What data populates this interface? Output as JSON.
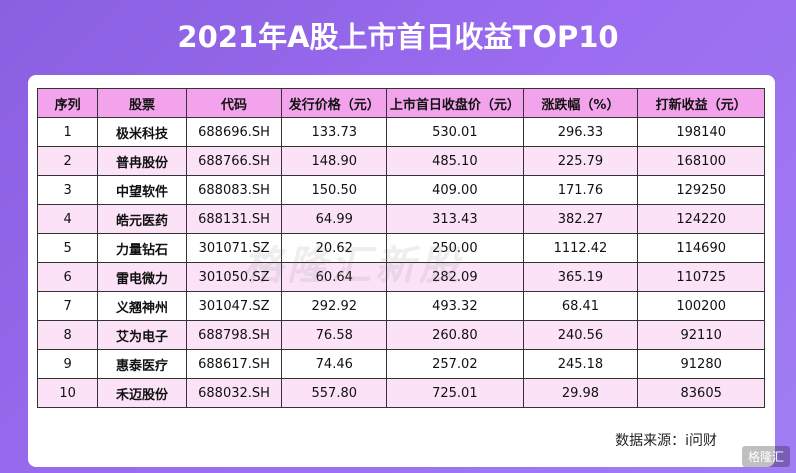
{
  "header": {
    "title": "2021年A股上市首日收益TOP10"
  },
  "table": {
    "columns": [
      "序列",
      "股票",
      "代码",
      "发行价格（元）",
      "上市首日收盘价（元）",
      "涨跌幅（%）",
      "打新收益（元）"
    ],
    "rows": [
      [
        "1",
        "极米科技",
        "688696.SH",
        "133.73",
        "530.01",
        "296.33",
        "198140"
      ],
      [
        "2",
        "普冉股份",
        "688766.SH",
        "148.90",
        "485.10",
        "225.79",
        "168100"
      ],
      [
        "3",
        "中望软件",
        "688083.SH",
        "150.50",
        "409.00",
        "171.76",
        "129250"
      ],
      [
        "4",
        "皓元医药",
        "688131.SH",
        "64.99",
        "313.43",
        "382.27",
        "124220"
      ],
      [
        "5",
        "力量钻石",
        "301071.SZ",
        "20.62",
        "250.00",
        "1112.42",
        "114690"
      ],
      [
        "6",
        "雷电微力",
        "301050.SZ",
        "60.64",
        "282.09",
        "365.19",
        "110725"
      ],
      [
        "7",
        "义翘神州",
        "301047.SZ",
        "292.92",
        "493.32",
        "68.41",
        "100200"
      ],
      [
        "8",
        "艾为电子",
        "688798.SH",
        "76.58",
        "260.80",
        "240.56",
        "92110"
      ],
      [
        "9",
        "惠泰医疗",
        "688617.SH",
        "74.46",
        "257.02",
        "245.18",
        "91280"
      ],
      [
        "10",
        "禾迈股份",
        "688032.SH",
        "557.80",
        "725.01",
        "29.98",
        "83605"
      ]
    ]
  },
  "source": "数据来源：i问财",
  "watermark": "格隆汇新股",
  "logo": "格隆汇"
}
